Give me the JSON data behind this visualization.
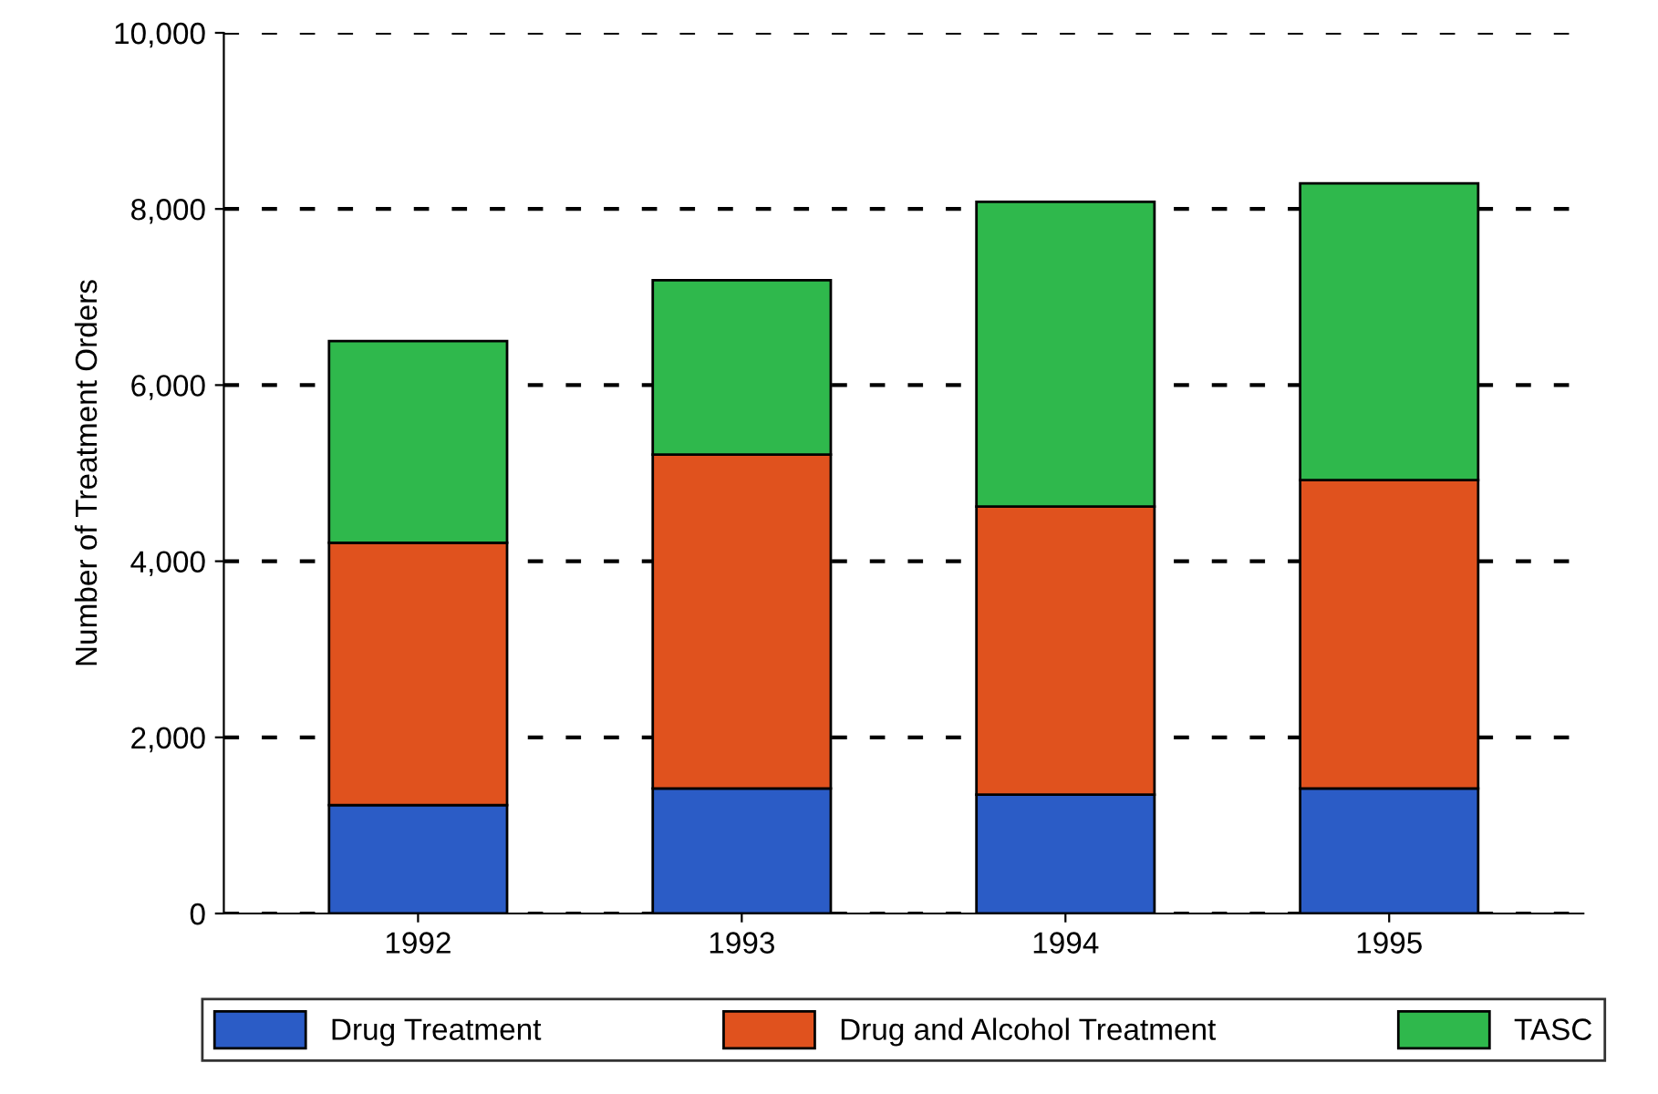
{
  "chart_data": {
    "type": "bar",
    "stacked": true,
    "ylabel": "Number of Treatment Orders",
    "categories": [
      "1992",
      "1993",
      "1994",
      "1995"
    ],
    "series": [
      {
        "name": "Drug Treatment",
        "color": "#2b5cc6",
        "values": [
          1230,
          1420,
          1350,
          1420
        ]
      },
      {
        "name": "Drug and Alcohol Treatment",
        "color": "#e0521e",
        "values": [
          2980,
          3790,
          3270,
          3500
        ]
      },
      {
        "name": "TASC",
        "color": "#2fb84c",
        "values": [
          2290,
          1980,
          3460,
          3370
        ]
      }
    ],
    "ylim": [
      0,
      10000
    ],
    "yticks": [
      0,
      {
        "value": 2000,
        "label": "2,000"
      },
      {
        "value": 4000,
        "label": "4,000"
      },
      {
        "value": 6000,
        "label": "6,000"
      },
      {
        "value": 8000,
        "label": "8,000"
      },
      {
        "value": 10000,
        "label": "10,000"
      }
    ],
    "grid": "y",
    "line_style": "dashed",
    "legend": "bottom"
  }
}
